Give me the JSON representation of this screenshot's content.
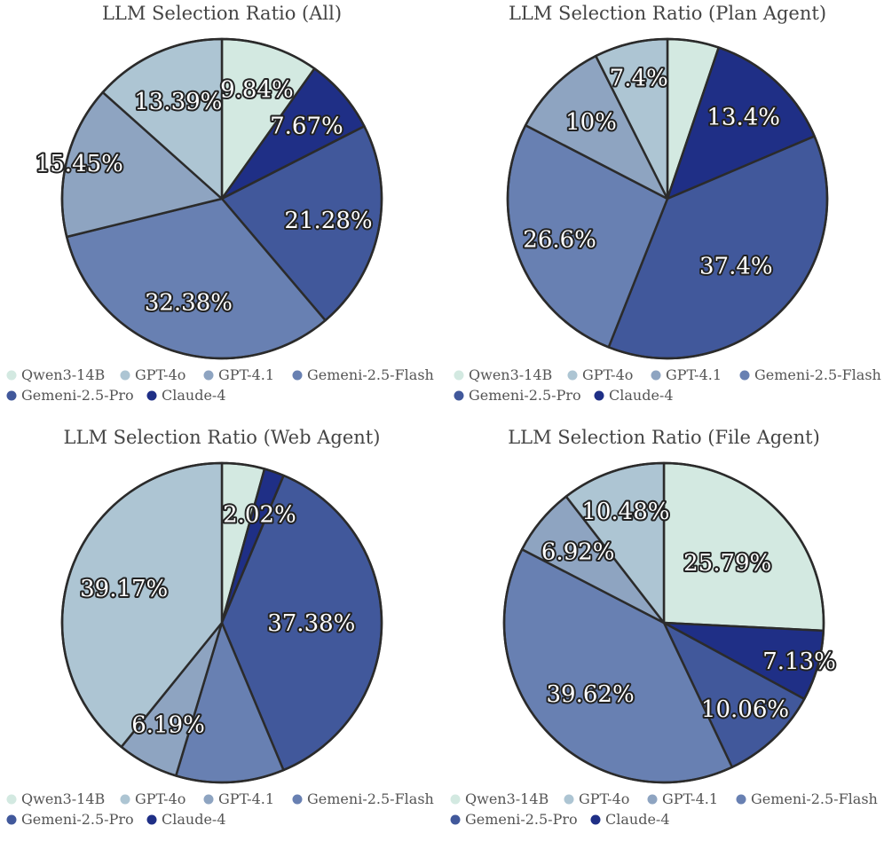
{
  "colors": {
    "Qwen3-14B": "#d3e9e1",
    "GPT-4o": "#adc5d3",
    "GPT-4.1": "#8ea4c1",
    "Gemeni-2.5-Flash": "#6880b2",
    "Gemeni-2.5-Pro": "#41589b",
    "Claude-4": "#1f2f86"
  },
  "chart_data": [
    {
      "type": "pie",
      "title": "LLM Selection Ratio (All)",
      "legend_entries": [
        "Qwen3-14B",
        "GPT-4o",
        "GPT-4.1",
        "Gemeni-2.5-Flash",
        "Gemeni-2.5-Pro",
        "Claude-4"
      ],
      "slices": [
        {
          "label": "Qwen3-14B",
          "value": 9.84,
          "text": "9.84%"
        },
        {
          "label": "Claude-4",
          "value": 7.67,
          "text": "7.67%"
        },
        {
          "label": "Gemeni-2.5-Pro",
          "value": 21.28,
          "text": "21.28%"
        },
        {
          "label": "Gemeni-2.5-Flash",
          "value": 32.38,
          "text": "32.38%"
        },
        {
          "label": "GPT-4.1",
          "value": 15.45,
          "text": "15.45%"
        },
        {
          "label": "GPT-4o",
          "value": 13.39,
          "text": "13.39%"
        }
      ]
    },
    {
      "type": "pie",
      "title": "LLM Selection Ratio (Plan Agent)",
      "legend_entries": [
        "Qwen3-14B",
        "GPT-4o",
        "GPT-4.1",
        "Gemeni-2.5-Flash",
        "Gemeni-2.5-Pro",
        "Claude-4"
      ],
      "slices": [
        {
          "label": "Qwen3-14B",
          "value": 5.2,
          "text": ""
        },
        {
          "label": "Claude-4",
          "value": 13.4,
          "text": "13.4%"
        },
        {
          "label": "Gemeni-2.5-Pro",
          "value": 37.4,
          "text": "37.4%"
        },
        {
          "label": "Gemeni-2.5-Flash",
          "value": 26.6,
          "text": "26.6%"
        },
        {
          "label": "GPT-4.1",
          "value": 10,
          "text": "10%"
        },
        {
          "label": "GPT-4o",
          "value": 7.4,
          "text": "7.4%"
        }
      ]
    },
    {
      "type": "pie",
      "title": "LLM Selection Ratio (Web Agent)",
      "legend_entries": [
        "Qwen3-14B",
        "GPT-4o",
        "GPT-4.1",
        "Gemeni-2.5-Flash",
        "Gemeni-2.5-Pro",
        "Claude-4"
      ],
      "slices": [
        {
          "label": "Qwen3-14B",
          "value": 4.3,
          "text": ""
        },
        {
          "label": "Claude-4",
          "value": 2.02,
          "text": "2.02%"
        },
        {
          "label": "Gemeni-2.5-Pro",
          "value": 37.38,
          "text": "37.38%"
        },
        {
          "label": "Gemeni-2.5-Flash",
          "value": 10.94,
          "text": ""
        },
        {
          "label": "GPT-4.1",
          "value": 6.19,
          "text": "6.19%"
        },
        {
          "label": "GPT-4o",
          "value": 39.17,
          "text": "39.17%"
        }
      ]
    },
    {
      "type": "pie",
      "title": "LLM Selection Ratio (File Agent)",
      "legend_entries": [
        "Qwen3-14B",
        "GPT-4o",
        "GPT-4.1",
        "Gemeni-2.5-Flash",
        "Gemeni-2.5-Pro",
        "Claude-4"
      ],
      "slices": [
        {
          "label": "Qwen3-14B",
          "value": 25.79,
          "text": "25.79%"
        },
        {
          "label": "Claude-4",
          "value": 7.13,
          "text": "7.13%"
        },
        {
          "label": "Gemeni-2.5-Pro",
          "value": 10.06,
          "text": "10.06%"
        },
        {
          "label": "Gemeni-2.5-Flash",
          "value": 39.62,
          "text": "39.62%"
        },
        {
          "label": "GPT-4.1",
          "value": 6.92,
          "text": "6.92%"
        },
        {
          "label": "GPT-4o",
          "value": 10.48,
          "text": "10.48%"
        }
      ]
    }
  ]
}
